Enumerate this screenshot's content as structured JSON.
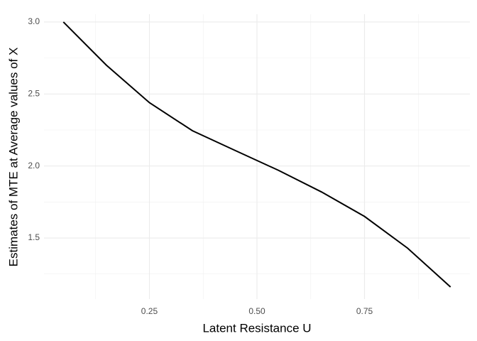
{
  "chart_data": {
    "type": "line",
    "x_label": "Latent Resistance U",
    "y_label": "Estimates of MTE at Average values of X",
    "x": [
      0.05,
      0.15,
      0.25,
      0.35,
      0.45,
      0.55,
      0.65,
      0.75,
      0.85,
      0.95
    ],
    "values": [
      3.0,
      2.7,
      2.44,
      2.245,
      2.107,
      1.97,
      1.82,
      1.65,
      1.43,
      1.16
    ],
    "color": "#000000",
    "xlim": [
      0.005,
      0.995
    ],
    "ylim": [
      1.076,
      3.054
    ],
    "xticks": [
      {
        "value": 0.25,
        "label": "0.25"
      },
      {
        "value": 0.5,
        "label": "0.50"
      },
      {
        "value": 0.75,
        "label": "0.75"
      }
    ],
    "yticks": [
      1.5,
      {
        "value": 2,
        "label": "2.0"
      },
      2.5,
      {
        "value": 3,
        "label": "3.0"
      }
    ],
    "x_minor_grid": [
      0.125,
      0.375,
      0.625,
      0.875
    ],
    "y_minor_grid": [
      1.25,
      1.75,
      2.25,
      2.75
    ],
    "grid": true
  }
}
